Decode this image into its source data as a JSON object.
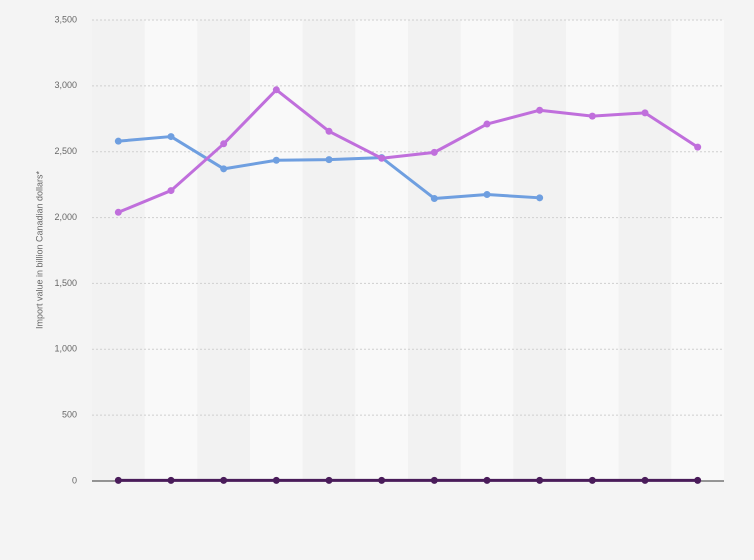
{
  "chart_data": {
    "type": "line",
    "y_label": "Import value in billion Canadian dollars*",
    "categories": [
      null,
      null,
      null,
      null,
      null,
      null,
      null,
      null,
      null,
      null,
      null,
      null
    ],
    "series": [
      {
        "color": "#6f9fe0",
        "values": [
          2580,
          2615,
          2370,
          2435,
          2440,
          2455,
          2145,
          2175,
          2150,
          null,
          null,
          null
        ]
      },
      {
        "color": "#c06fdc",
        "values": [
          2040,
          2205,
          2560,
          2970,
          2655,
          2450,
          2495,
          2710,
          2815,
          2770,
          2795,
          2535
        ]
      },
      {
        "color": "#4a1c5a",
        "values": [
          5,
          5,
          5,
          5,
          5,
          5,
          5,
          5,
          5,
          5,
          5,
          5
        ]
      }
    ],
    "ylim": [
      0,
      3500
    ],
    "yticks": [
      0,
      500,
      {
        "value": 1000,
        "label": "1,000"
      },
      {
        "value": 1500,
        "label": "1,500"
      },
      {
        "value": 2000,
        "label": "2,000"
      },
      {
        "value": 2500,
        "label": "2,500"
      },
      {
        "value": 3000,
        "label": "3,000"
      },
      {
        "value": 3500,
        "label": "3,500"
      }
    ],
    "grid": true
  }
}
